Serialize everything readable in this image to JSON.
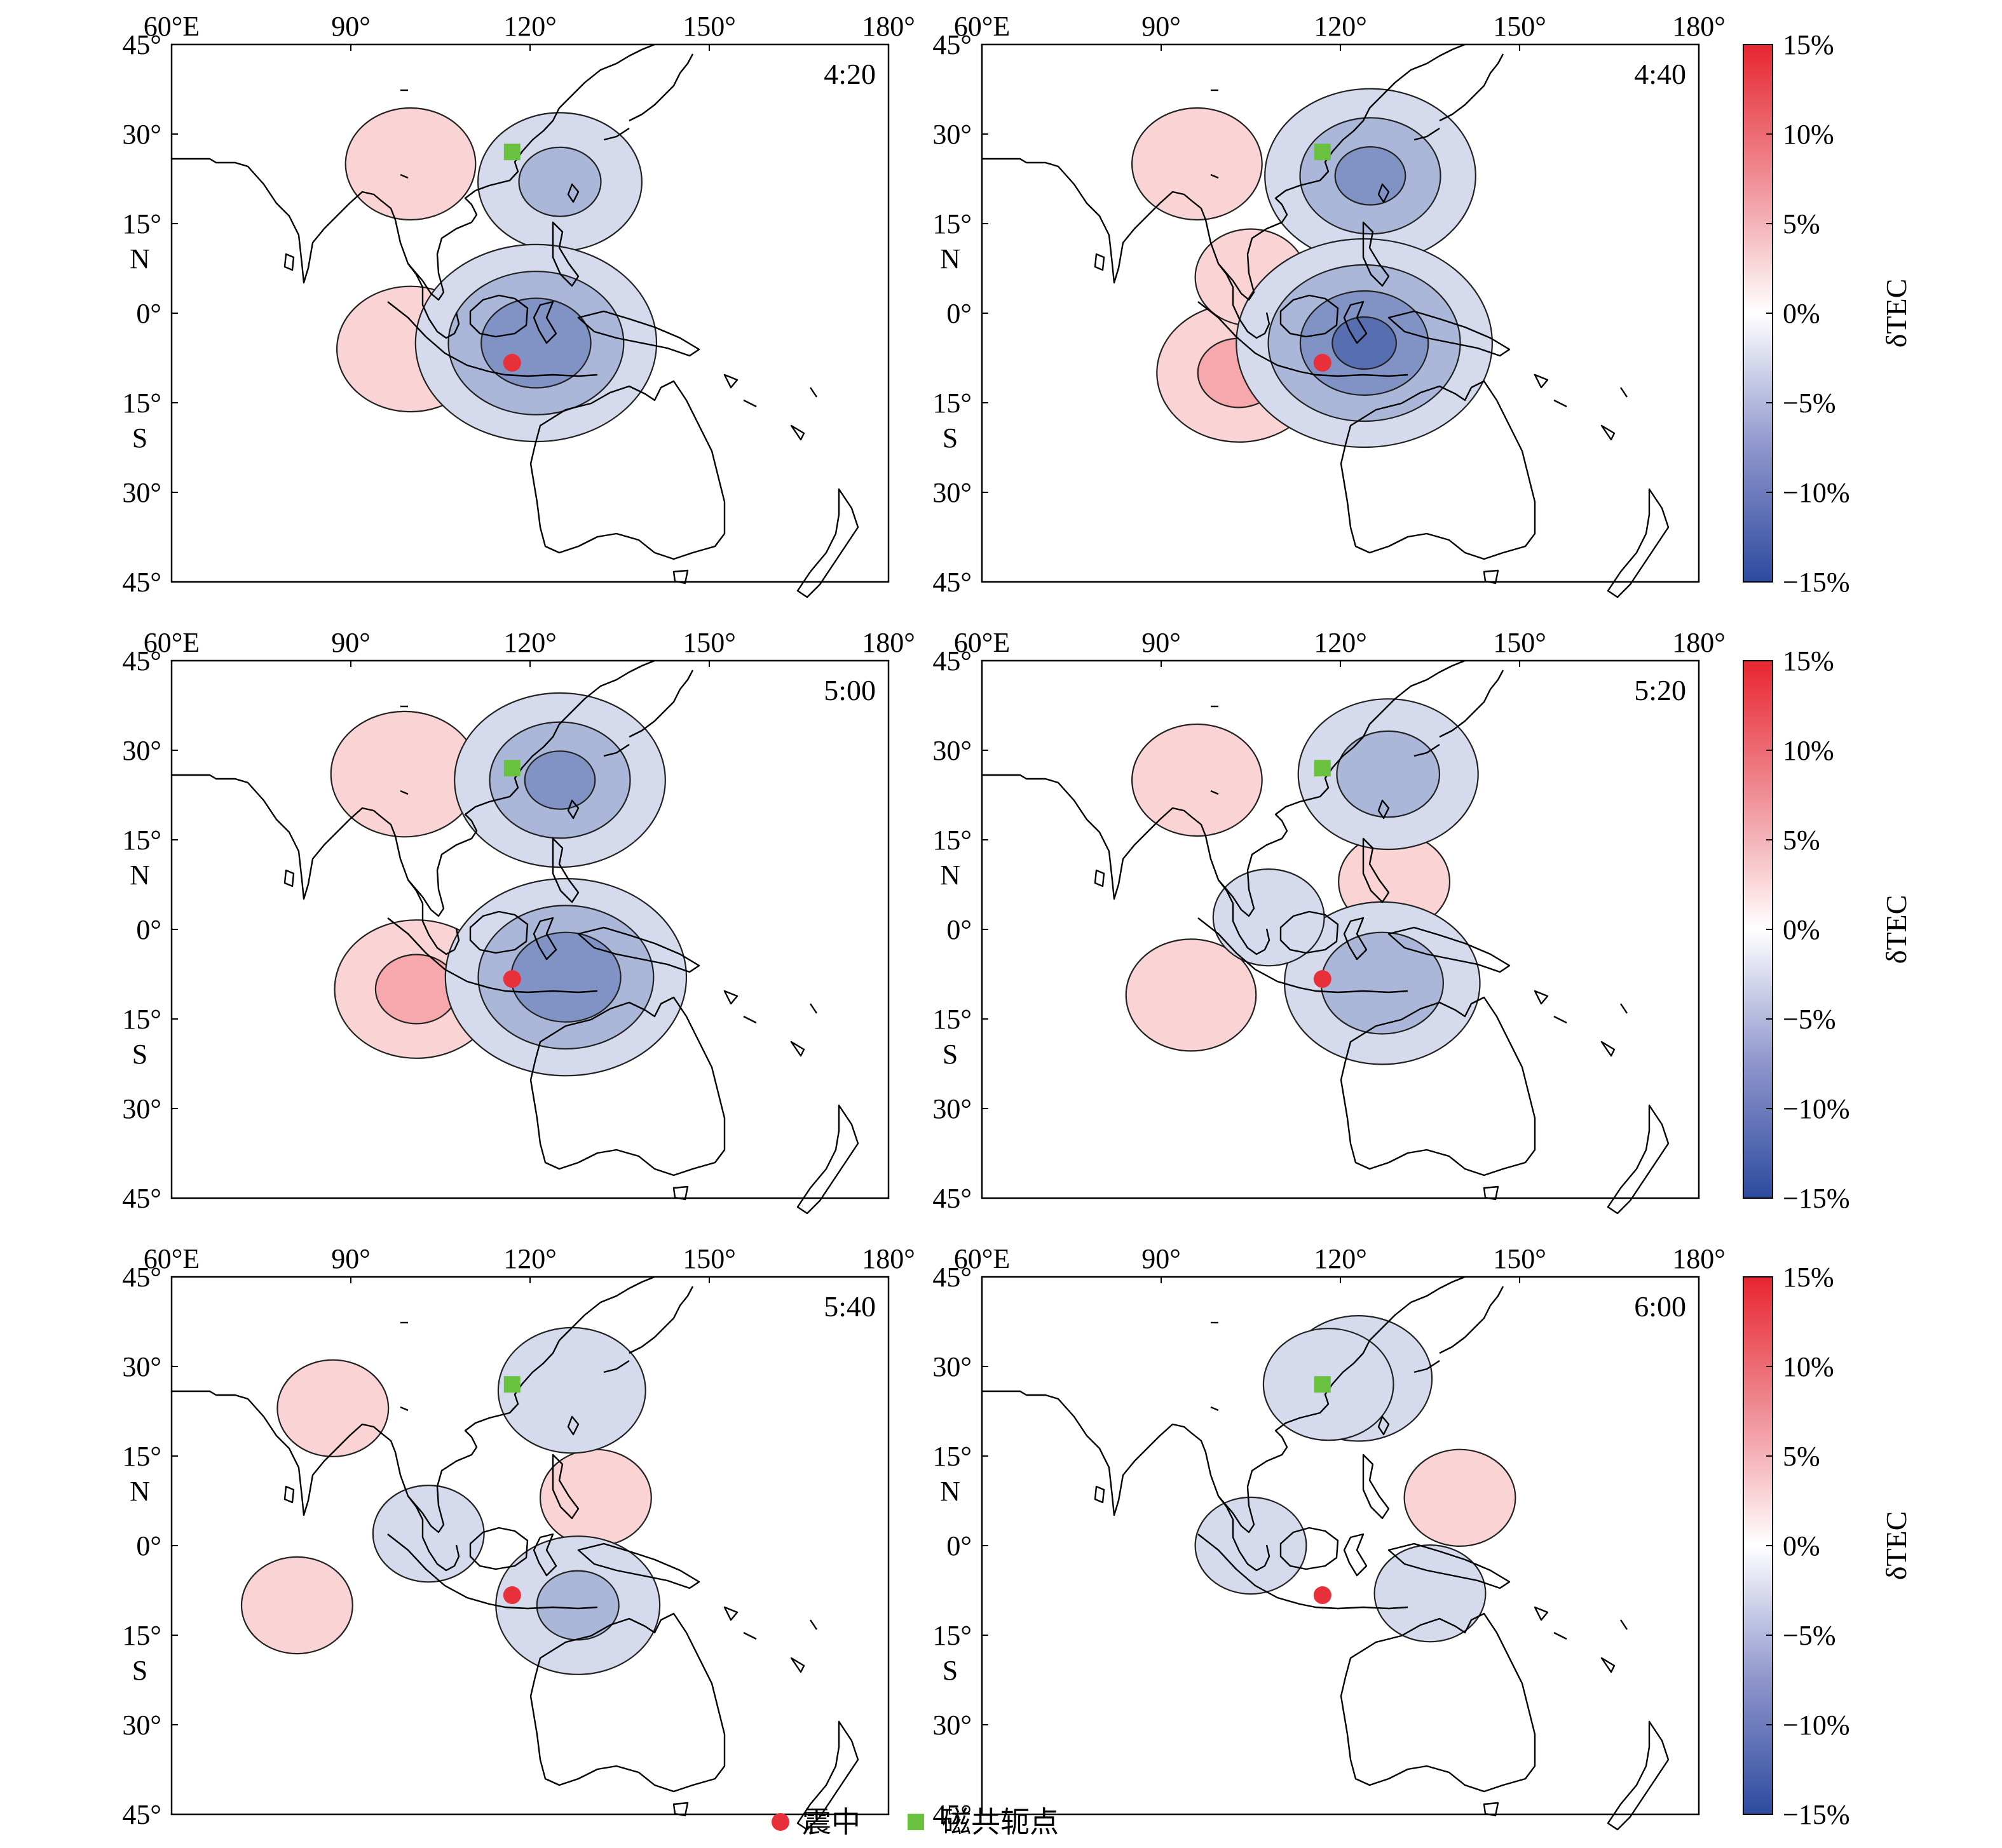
{
  "figure": {
    "panels": [
      {
        "time": "4:20",
        "colorbar": false
      },
      {
        "time": "4:40",
        "colorbar": true
      },
      {
        "time": "5:00",
        "colorbar": false
      },
      {
        "time": "5:20",
        "colorbar": true
      },
      {
        "time": "5:40",
        "colorbar": false
      },
      {
        "time": "6:00",
        "colorbar": true
      }
    ],
    "axes": {
      "lon_ticks": [
        "60°E",
        "90°",
        "120°",
        "150°",
        "180°"
      ],
      "lat_ticks": [
        "45°",
        "30°",
        "15°",
        "0°",
        "15°",
        "30°",
        "45°"
      ],
      "lat_hemisphere_north": "N",
      "lat_hemisphere_south": "S",
      "lon_range": [
        60,
        180
      ],
      "lat_range": [
        -45,
        45
      ]
    },
    "colorbar": {
      "label": "δTEC",
      "ticks": [
        "15%",
        "10%",
        "5%",
        "0%",
        "−5%",
        "−10%",
        "−15%"
      ],
      "range": [
        -15,
        15
      ],
      "positive_color": "#e8252f",
      "negative_color": "#2d4a9e"
    },
    "legend": {
      "epicenter_label": "震中",
      "epicenter_color": "#e8303a",
      "conjugate_label": "磁共轭点",
      "conjugate_color": "#6ac13f"
    },
    "markers": {
      "epicenter": {
        "lon": 117,
        "lat": -8.3
      },
      "conjugate": {
        "lon": 117,
        "lat": 27
      }
    }
  },
  "chart_data": {
    "type": "heatmap",
    "title": "",
    "value_label": "δTEC",
    "units": "%",
    "lon_range": [
      60,
      180
    ],
    "lat_range": [
      -45,
      45
    ],
    "color_range": [
      -15,
      15
    ],
    "panels": [
      {
        "time": "4:20",
        "anomalies": [
          {
            "lon": 100,
            "lat": -6,
            "peak": 4
          },
          {
            "lon": 100,
            "lat": 25,
            "peak": 3
          },
          {
            "lon": 125,
            "lat": 22,
            "peak": -5
          },
          {
            "lon": 121,
            "lat": -5,
            "peak": -10
          }
        ]
      },
      {
        "time": "4:40",
        "anomalies": [
          {
            "lon": 103,
            "lat": -10,
            "peak": 5
          },
          {
            "lon": 96,
            "lat": 25,
            "peak": 3
          },
          {
            "lon": 105,
            "lat": 6,
            "peak": 2
          },
          {
            "lon": 125,
            "lat": 23,
            "peak": -8
          },
          {
            "lon": 124,
            "lat": -5,
            "peak": -11
          }
        ]
      },
      {
        "time": "5:00",
        "anomalies": [
          {
            "lon": 101,
            "lat": -10,
            "peak": 5
          },
          {
            "lon": 99,
            "lat": 26,
            "peak": 4
          },
          {
            "lon": 125,
            "lat": 25,
            "peak": -8
          },
          {
            "lon": 126,
            "lat": -8,
            "peak": -10
          }
        ]
      },
      {
        "time": "5:20",
        "anomalies": [
          {
            "lon": 95,
            "lat": -11,
            "peak": 3
          },
          {
            "lon": 96,
            "lat": 25,
            "peak": 3
          },
          {
            "lon": 129,
            "lat": 8,
            "peak": 2
          },
          {
            "lon": 128,
            "lat": 26,
            "peak": -6
          },
          {
            "lon": 127,
            "lat": -9,
            "peak": -7
          },
          {
            "lon": 108,
            "lat": 2,
            "peak": -2
          }
        ]
      },
      {
        "time": "5:40",
        "anomalies": [
          {
            "lon": 81,
            "lat": -10,
            "peak": 2
          },
          {
            "lon": 87,
            "lat": 23,
            "peak": 2
          },
          {
            "lon": 131,
            "lat": 8,
            "peak": 2
          },
          {
            "lon": 127,
            "lat": 26,
            "peak": -4
          },
          {
            "lon": 128,
            "lat": -10,
            "peak": -5
          },
          {
            "lon": 103,
            "lat": 2,
            "peak": -2
          }
        ]
      },
      {
        "time": "6:00",
        "anomalies": [
          {
            "lon": 140,
            "lat": 8,
            "peak": 2
          },
          {
            "lon": 123,
            "lat": 28,
            "peak": -4
          },
          {
            "lon": 118,
            "lat": 27,
            "peak": -3
          },
          {
            "lon": 135,
            "lat": -8,
            "peak": -2
          },
          {
            "lon": 105,
            "lat": 0,
            "peak": -2
          }
        ]
      }
    ]
  }
}
